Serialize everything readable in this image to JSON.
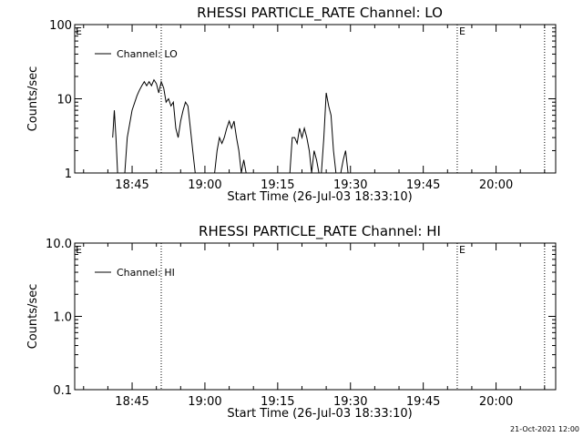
{
  "footer": {
    "timestamp": "21-Oct-2021 12:00"
  },
  "chart_data": [
    {
      "type": "line",
      "title": "RHESSI PARTICLE_RATE Channel: LO",
      "xlabel": "Start Time (26-Jul-03 18:33:10)",
      "ylabel": "Counts/sec",
      "yscale": "log",
      "ylim": [
        1,
        100
      ],
      "xlim_minutes_axis": [
        "18:33:10",
        "20:12:00"
      ],
      "xticks": [
        "18:45",
        "19:00",
        "19:15",
        "19:30",
        "19:45",
        "20:00"
      ],
      "yticks": [
        "1",
        "10",
        "100"
      ],
      "legend": {
        "placement": "top-left",
        "entries": [
          "Channel: LO"
        ]
      },
      "markers": [
        {
          "label": "",
          "time": "18:51"
        },
        {
          "label": "E",
          "time": "19:52"
        },
        {
          "label": "",
          "time": "20:10"
        }
      ],
      "corner_label": "E",
      "series": [
        {
          "name": "Channel: LO",
          "x": [
            "18:41:00",
            "18:41:20",
            "18:41:40",
            "18:42:00",
            "18:43:30",
            "18:44:00",
            "18:45:00",
            "18:46:00",
            "18:46:30",
            "18:47:00",
            "18:47:30",
            "18:48:00",
            "18:48:30",
            "18:49:00",
            "18:49:30",
            "18:50:00",
            "18:50:30",
            "18:51:00",
            "18:51:30",
            "18:52:00",
            "18:52:30",
            "18:53:00",
            "18:53:30",
            "18:54:00",
            "18:54:30",
            "18:55:00",
            "18:55:30",
            "18:56:00",
            "18:56:30",
            "18:57:00",
            "18:57:30",
            "18:58:00",
            "18:58:30",
            "19:02:00",
            "19:02:30",
            "19:03:00",
            "19:03:30",
            "19:04:00",
            "19:04:30",
            "19:05:00",
            "19:05:30",
            "19:06:00",
            "19:06:30",
            "19:07:00",
            "19:07:30",
            "19:08:00",
            "19:08:30",
            "19:09:00",
            "19:09:30",
            "19:10:00",
            "19:17:30",
            "19:18:00",
            "19:18:30",
            "19:19:00",
            "19:19:30",
            "19:20:00",
            "19:20:30",
            "19:21:00",
            "19:21:30",
            "19:22:00",
            "19:22:30",
            "19:23:00",
            "19:23:30",
            "19:24:00",
            "19:24:30",
            "19:25:00",
            "19:25:30",
            "19:26:00",
            "19:26:30",
            "19:27:00",
            "19:27:30",
            "19:28:00",
            "19:28:30",
            "19:29:00",
            "19:29:30",
            "19:30:00"
          ],
          "y": [
            3.0,
            7.0,
            3.0,
            1.0,
            1.0,
            3.0,
            7.0,
            11.0,
            13.0,
            15.0,
            17.0,
            15.0,
            17.0,
            15.0,
            18.0,
            16.0,
            12.0,
            17.0,
            14.0,
            9.0,
            10.0,
            8.0,
            9.0,
            4.0,
            3.0,
            5.0,
            7.0,
            9.0,
            8.0,
            4.0,
            2.0,
            1.0,
            1.0,
            1.0,
            2.0,
            3.0,
            2.5,
            3.0,
            4.0,
            5.0,
            4.0,
            5.0,
            3.0,
            2.0,
            1.0,
            1.5,
            1.0,
            1.0,
            1.0,
            1.0,
            1.0,
            3.0,
            3.0,
            2.5,
            4.0,
            3.0,
            4.0,
            3.0,
            2.0,
            1.0,
            2.0,
            1.5,
            1.0,
            1.0,
            3.0,
            12.0,
            8.0,
            6.0,
            2.0,
            1.0,
            1.0,
            1.0,
            1.5,
            2.0,
            1.0,
            1.0
          ]
        }
      ]
    },
    {
      "type": "line",
      "title": "RHESSI PARTICLE_RATE Channel: HI",
      "xlabel": "Start Time (26-Jul-03 18:33:10)",
      "ylabel": "Counts/sec",
      "yscale": "log",
      "ylim": [
        0.1,
        10
      ],
      "xticks": [
        "18:45",
        "19:00",
        "19:15",
        "19:30",
        "19:45",
        "20:00"
      ],
      "yticks": [
        "0.1",
        "1.0",
        "10.0"
      ],
      "legend": {
        "placement": "top-left",
        "entries": [
          "Channel: HI"
        ]
      },
      "markers": [
        {
          "label": "",
          "time": "18:51"
        },
        {
          "label": "E",
          "time": "19:52"
        },
        {
          "label": "",
          "time": "20:10"
        }
      ],
      "corner_label": "E",
      "series": [
        {
          "name": "Channel: HI",
          "x": [],
          "y": []
        }
      ]
    }
  ]
}
